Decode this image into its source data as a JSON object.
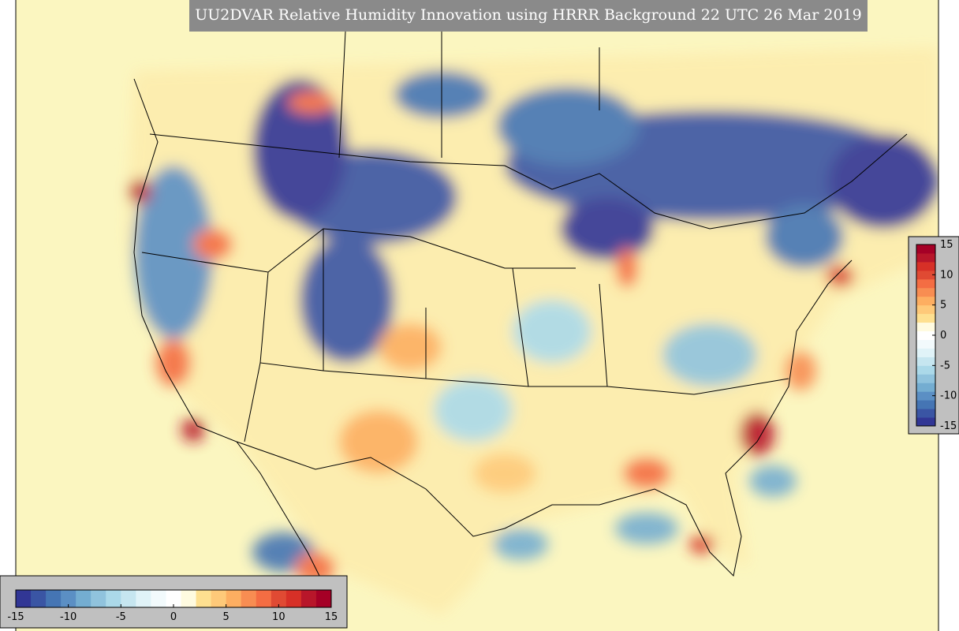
{
  "title": "UU2DVAR Relative Humidity Innovation using HRRR Background 22 UTC 26 Mar 2019",
  "colormap": [
    "#313695",
    "#3a55a4",
    "#4575b4",
    "#5b8fc4",
    "#74add1",
    "#90c3dd",
    "#abd9e9",
    "#c6e6f0",
    "#e0f3f8",
    "#f2fafc",
    "#ffffff",
    "#fffbe0",
    "#fee090",
    "#fec979",
    "#fdae61",
    "#f88d52",
    "#f46d43",
    "#e04a33",
    "#d73027",
    "#b8162a",
    "#a50026"
  ],
  "colorbar_right": {
    "range": [
      -15,
      15
    ],
    "ticks": [
      -15,
      -10,
      -5,
      0,
      5,
      10,
      15
    ]
  },
  "colorbar_bottom": {
    "range": [
      -15,
      15
    ],
    "ticks": [
      -15,
      -10,
      -5,
      0,
      5,
      10,
      15
    ]
  }
}
